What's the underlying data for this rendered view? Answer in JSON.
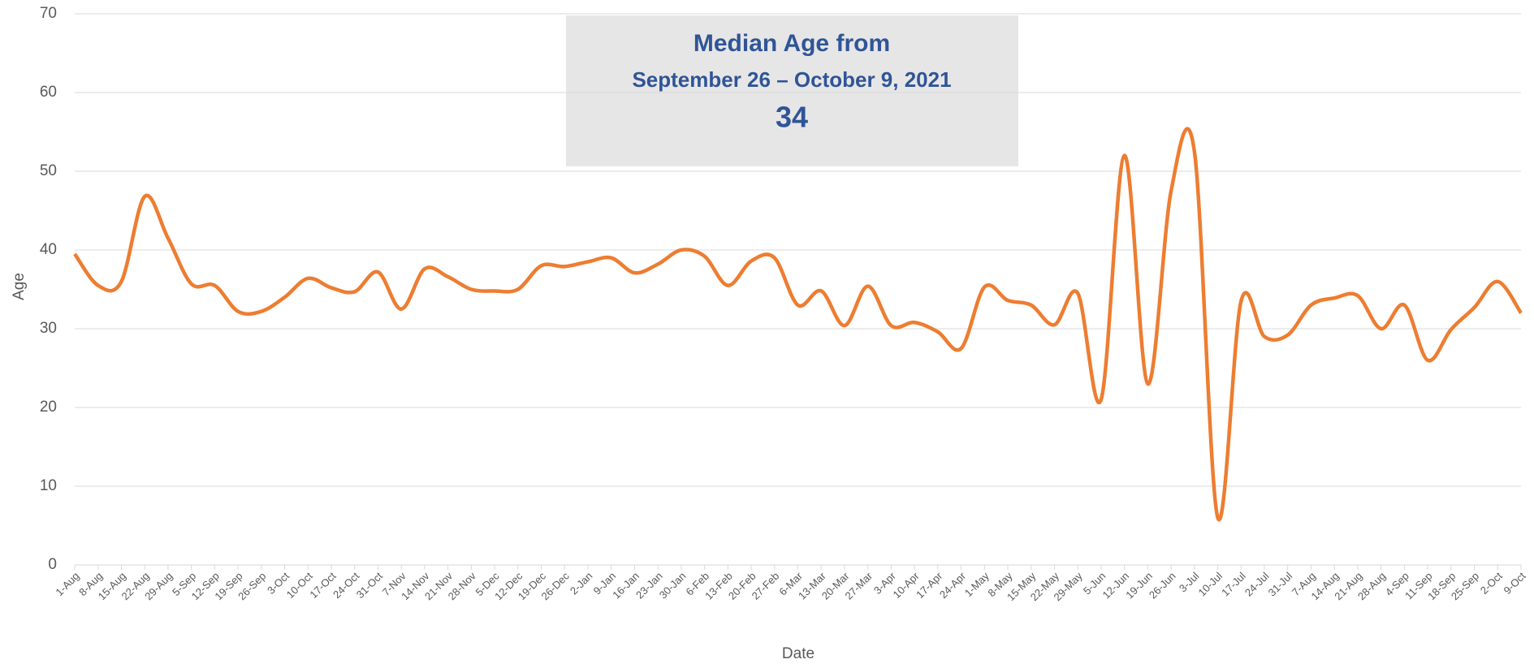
{
  "chart_data": {
    "type": "line",
    "title": "Median Age from",
    "subtitle": "September 26 – October 9, 2021",
    "annotation": "34",
    "x_label": "Date",
    "y_label": "Age",
    "categories": [
      "1-Aug",
      "8-Aug",
      "15-Aug",
      "22-Aug",
      "29-Aug",
      "5-Sep",
      "12-Sep",
      "19-Sep",
      "26-Sep",
      "3-Oct",
      "10-Oct",
      "17-Oct",
      "24-Oct",
      "31-Oct",
      "7-Nov",
      "14-Nov",
      "21-Nov",
      "28-Nov",
      "5-Dec",
      "12-Dec",
      "19-Dec",
      "26-Dec",
      "2-Jan",
      "9-Jan",
      "16-Jan",
      "23-Jan",
      "30-Jan",
      "6-Feb",
      "13-Feb",
      "20-Feb",
      "27-Feb",
      "6-Mar",
      "13-Mar",
      "20-Mar",
      "27-Mar",
      "3-Apr",
      "10-Apr",
      "17-Apr",
      "24-Apr",
      "1-May",
      "8-May",
      "15-May",
      "22-May",
      "29-May",
      "5-Jun",
      "12-Jun",
      "19-Jun",
      "26-Jun",
      "3-Jul",
      "10-Jul",
      "17-Jul",
      "24-Jul",
      "31-Jul",
      "7-Aug",
      "14-Aug",
      "21-Aug",
      "28-Aug",
      "4-Sep",
      "11-Sep",
      "18-Sep",
      "25-Sep",
      "2-Oct",
      "9-Oct"
    ],
    "values": [
      39.5,
      35.5,
      36,
      46.8,
      41.5,
      35.7,
      35.5,
      32.2,
      32.2,
      34,
      36.4,
      35.2,
      34.7,
      37.2,
      32.5,
      37.6,
      36.6,
      35,
      34.8,
      35,
      38,
      37.9,
      38.5,
      39,
      37.1,
      38.2,
      40,
      39.2,
      35.5,
      38.6,
      39,
      33,
      34.8,
      30.4,
      35.4,
      30.4,
      30.8,
      29.6,
      27.5,
      35.3,
      33.6,
      33,
      30.5,
      34.5,
      21,
      52,
      23,
      47.5,
      52.5,
      6,
      33.5,
      29,
      29.2,
      33,
      33.9,
      34.2,
      30,
      33,
      26,
      29.9,
      32.7,
      36,
      32
    ],
    "color": "#ed7d31",
    "ylim": [
      0,
      70
    ],
    "yticks": [
      0,
      10,
      20,
      30,
      40,
      50,
      60,
      70
    ],
    "grid": true
  }
}
